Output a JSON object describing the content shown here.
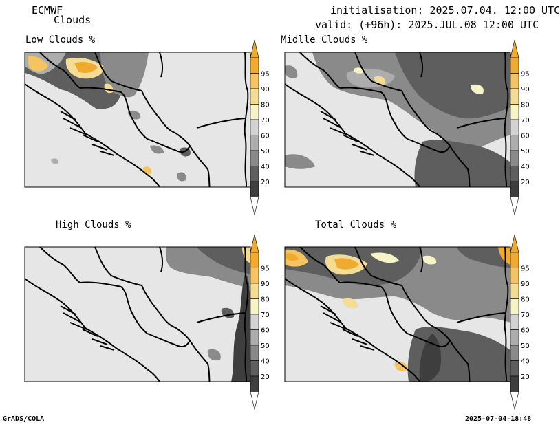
{
  "header": {
    "model": "ECMWF",
    "product": "Clouds",
    "init_line": "initialisation: 2025.07.04. 12:00 UTC",
    "valid_line": "valid: (+96h): 2025.JUL.08 12:00 UTC"
  },
  "panels": [
    {
      "title": "Low Clouds %"
    },
    {
      "title": "Midlle Clouds %"
    },
    {
      "title": "High Clouds %"
    },
    {
      "title": "Total Clouds %"
    }
  ],
  "colorbar": {
    "labels": [
      "95",
      "90",
      "80",
      "70",
      "60",
      "50",
      "40",
      "20"
    ],
    "colors": [
      "#f0aa2e",
      "#f3c461",
      "#f4dc94",
      "#f6f3c6",
      "#d2d2d2",
      "#adadad",
      "#8a8a8a",
      "#5e5e5e",
      "#3e3e3e"
    ],
    "above_color": "#f0aa2e",
    "below_color": "#ffffff"
  },
  "footer": {
    "left": "GrADS/COLA",
    "right": "2025-07-04-18:48"
  },
  "map_background": "#e6e6e6"
}
